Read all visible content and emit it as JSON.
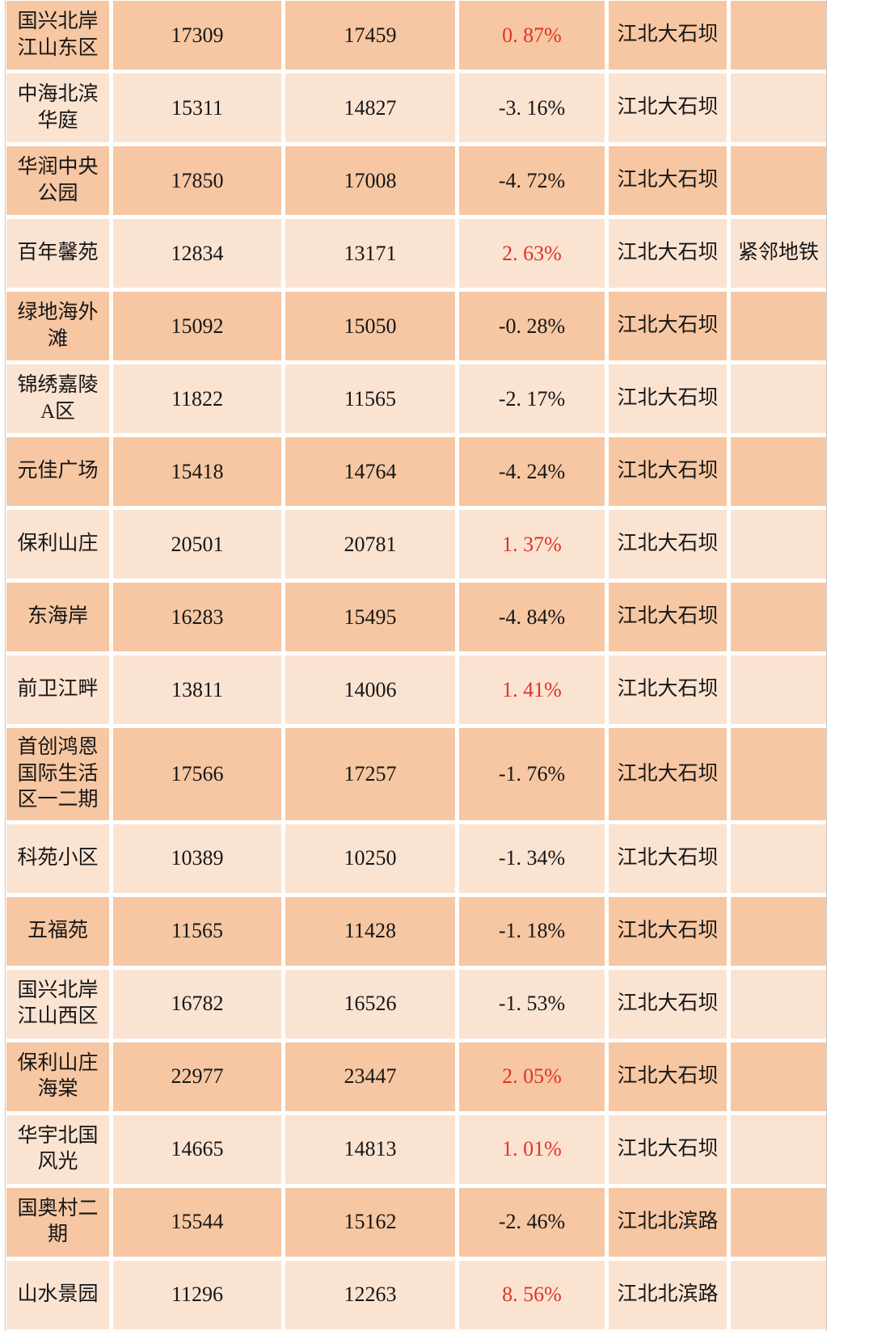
{
  "colors": {
    "row_dark": "#f6c7a2",
    "row_light": "#fbe3d2",
    "up_red": "#e03426",
    "text": "#161616",
    "grid": "#ffffff"
  },
  "table": {
    "column_semantics": [
      "community_name",
      "previous_price",
      "current_price",
      "change_percent",
      "district",
      "note"
    ],
    "rows": [
      {
        "name": "国兴北岸江山东区",
        "prev": "17309",
        "curr": "17459",
        "change": "0. 87%",
        "trend": "up",
        "district": "江北大石坝",
        "note": ""
      },
      {
        "name": "中海北滨华庭",
        "prev": "15311",
        "curr": "14827",
        "change": "-3. 16%",
        "trend": "down",
        "district": "江北大石坝",
        "note": ""
      },
      {
        "name": "华润中央公园",
        "prev": "17850",
        "curr": "17008",
        "change": "-4. 72%",
        "trend": "down",
        "district": "江北大石坝",
        "note": ""
      },
      {
        "name": "百年馨苑",
        "prev": "12834",
        "curr": "13171",
        "change": "2. 63%",
        "trend": "up",
        "district": "江北大石坝",
        "note": "紧邻地铁"
      },
      {
        "name": "绿地海外滩",
        "prev": "15092",
        "curr": "15050",
        "change": "-0. 28%",
        "trend": "down",
        "district": "江北大石坝",
        "note": ""
      },
      {
        "name": "锦绣嘉陵A区",
        "prev": "11822",
        "curr": "11565",
        "change": "-2. 17%",
        "trend": "down",
        "district": "江北大石坝",
        "note": ""
      },
      {
        "name": "元佳广场",
        "prev": "15418",
        "curr": "14764",
        "change": "-4. 24%",
        "trend": "down",
        "district": "江北大石坝",
        "note": ""
      },
      {
        "name": "保利山庄",
        "prev": "20501",
        "curr": "20781",
        "change": "1. 37%",
        "trend": "up",
        "district": "江北大石坝",
        "note": ""
      },
      {
        "name": "东海岸",
        "prev": "16283",
        "curr": "15495",
        "change": "-4. 84%",
        "trend": "down",
        "district": "江北大石坝",
        "note": ""
      },
      {
        "name": "前卫江畔",
        "prev": "13811",
        "curr": "14006",
        "change": "1. 41%",
        "trend": "up",
        "district": "江北大石坝",
        "note": ""
      },
      {
        "name": "首创鸿恩国际生活区一二期",
        "prev": "17566",
        "curr": "17257",
        "change": "-1. 76%",
        "trend": "down",
        "district": "江北大石坝",
        "note": ""
      },
      {
        "name": "科苑小区",
        "prev": "10389",
        "curr": "10250",
        "change": "-1. 34%",
        "trend": "down",
        "district": "江北大石坝",
        "note": ""
      },
      {
        "name": "五福苑",
        "prev": "11565",
        "curr": "11428",
        "change": "-1. 18%",
        "trend": "down",
        "district": "江北大石坝",
        "note": ""
      },
      {
        "name": "国兴北岸江山西区",
        "prev": "16782",
        "curr": "16526",
        "change": "-1. 53%",
        "trend": "down",
        "district": "江北大石坝",
        "note": ""
      },
      {
        "name": "保利山庄海棠",
        "prev": "22977",
        "curr": "23447",
        "change": "2. 05%",
        "trend": "up",
        "district": "江北大石坝",
        "note": ""
      },
      {
        "name": "华宇北国风光",
        "prev": "14665",
        "curr": "14813",
        "change": "1. 01%",
        "trend": "up",
        "district": "江北大石坝",
        "note": ""
      },
      {
        "name": "国奥村二期",
        "prev": "15544",
        "curr": "15162",
        "change": "-2. 46%",
        "trend": "down",
        "district": "江北北滨路",
        "note": ""
      },
      {
        "name": "山水景园",
        "prev": "11296",
        "curr": "12263",
        "change": "8. 56%",
        "trend": "up",
        "district": "江北北滨路",
        "note": ""
      }
    ]
  }
}
